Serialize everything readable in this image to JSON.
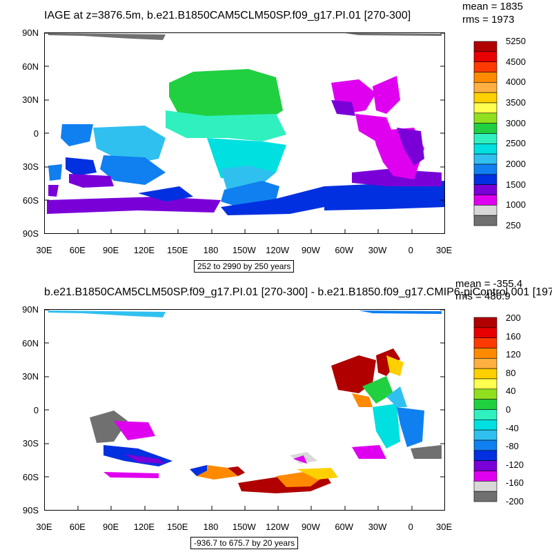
{
  "panel_top": {
    "title": "IAGE at z=3876.5m, b.e21.B1850CAM5CLM50SP.f09_g17.PI.01 [270-300]",
    "mean": "mean = 1835",
    "rms": "rms = 1973",
    "contour_note": "252 to 2990 by 250 years",
    "lat_ticks": [
      "90N",
      "60N",
      "30N",
      "0",
      "30S",
      "60S",
      "90S"
    ],
    "lon_ticks": [
      "30E",
      "60E",
      "90E",
      "120E",
      "150E",
      "180",
      "150W",
      "120W",
      "90W",
      "60W",
      "30W",
      "0",
      "30E"
    ],
    "colorbar": {
      "colors": [
        "#b00000",
        "#e80000",
        "#ff3a00",
        "#ff8a00",
        "#ffb040",
        "#ffd000",
        "#ffff50",
        "#90e020",
        "#20d040",
        "#30f0c0",
        "#00e0e0",
        "#30c0f0",
        "#1080f0",
        "#0030e0",
        "#7a00d8",
        "#e000f0",
        "#d8d8d8",
        "#707070"
      ],
      "labels": [
        "5250",
        "4500",
        "4000",
        "3500",
        "3000",
        "2500",
        "2000",
        "1500",
        "1000",
        "250"
      ]
    }
  },
  "panel_bottom": {
    "title": "b.e21.B1850CAM5CLM50SP.f09_g17.PI.01 [270-300] - b.e21.B1850.f09_g17.CMIP6-piControl.001 [197",
    "mean": "mean = -355.4",
    "rms": "rms = 486.9",
    "contour_note": "-936.7 to 675.7 by 20 years",
    "lat_ticks": [
      "90N",
      "60N",
      "30N",
      "0",
      "30S",
      "60S",
      "90S"
    ],
    "lon_ticks": [
      "30E",
      "60E",
      "90E",
      "120E",
      "150E",
      "180",
      "150W",
      "120W",
      "90W",
      "60W",
      "30W",
      "0",
      "30E"
    ],
    "colorbar": {
      "colors": [
        "#b00000",
        "#e80000",
        "#ff3a00",
        "#ff8a00",
        "#ffb040",
        "#ffd000",
        "#ffff50",
        "#90e020",
        "#20d040",
        "#30f0c0",
        "#00e0e0",
        "#30c0f0",
        "#1080f0",
        "#0030e0",
        "#7a00d8",
        "#e000f0",
        "#d8d8d8",
        "#707070"
      ],
      "labels": [
        "200",
        "160",
        "120",
        "80",
        "40",
        "0",
        "-40",
        "-80",
        "-120",
        "-160",
        "-200"
      ]
    }
  }
}
